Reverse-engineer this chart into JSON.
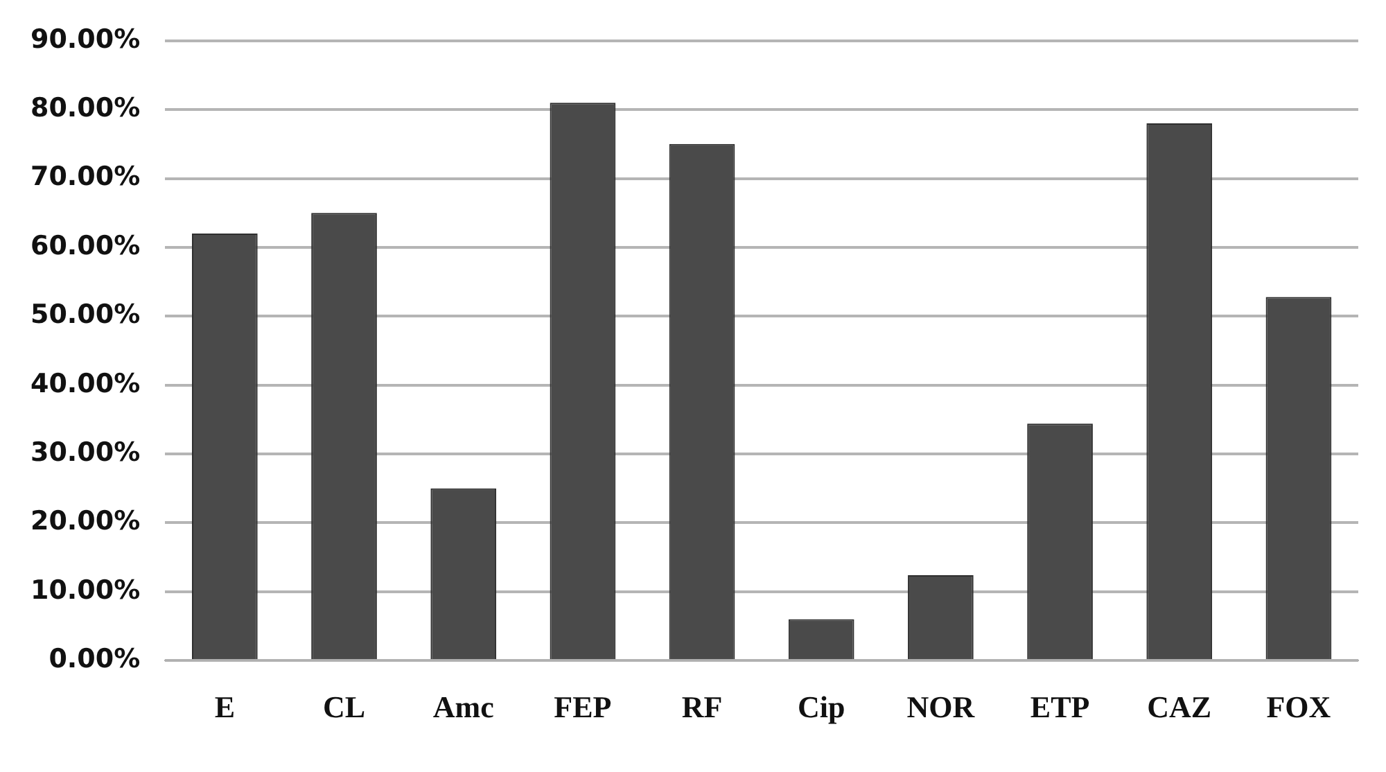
{
  "chart_data": {
    "type": "bar",
    "categories": [
      "E",
      "CL",
      "Amc",
      "FEP",
      "RF",
      "Cip",
      "NOR",
      "ETP",
      "CAZ",
      "FOX"
    ],
    "values": [
      62,
      65,
      25,
      81,
      75,
      6,
      12.4,
      34.4,
      78,
      52.8
    ],
    "color": "#4a4a4a",
    "ylim": [
      0,
      90
    ],
    "yticks": [
      {
        "value": 0,
        "label": "0.00%"
      },
      {
        "value": 10,
        "label": "10.00%"
      },
      {
        "value": 20,
        "label": "20.00%"
      },
      {
        "value": 30,
        "label": "30.00%"
      },
      {
        "value": 40,
        "label": "40.00%"
      },
      {
        "value": 50,
        "label": "50.00%"
      },
      {
        "value": 60,
        "label": "60.00%"
      },
      {
        "value": 70,
        "label": "70.00%"
      },
      {
        "value": 80,
        "label": "80.00%"
      },
      {
        "value": 90,
        "label": "90.00%"
      }
    ],
    "grid": "y",
    "legend": false
  }
}
